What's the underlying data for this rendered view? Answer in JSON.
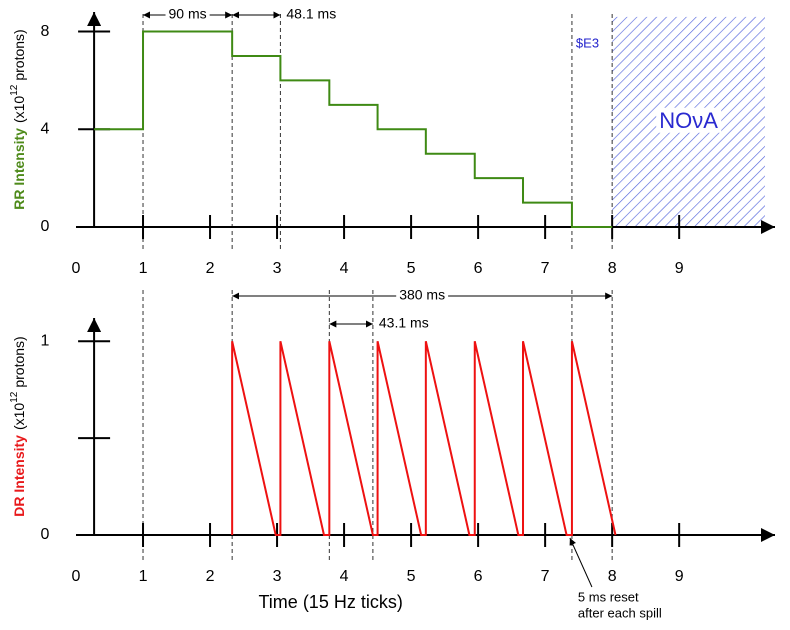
{
  "chart_data": [
    {
      "type": "line",
      "y_label": {
        "name": "RR Intensity",
        "unit": "(x10",
        "exponent": "12",
        "unit_end": "protons)",
        "name_color": "#4e8a1a"
      },
      "x": [
        0.27,
        1,
        1,
        2.33,
        2.33,
        3.05,
        3.05,
        3.78,
        3.78,
        4.5,
        4.5,
        5.22,
        5.22,
        5.95,
        5.95,
        6.67,
        6.67,
        7.4,
        7.4,
        8
      ],
      "series": [
        {
          "name": "RR Intensity",
          "color": "#3f8a14",
          "values": [
            4,
            4,
            8,
            8,
            7,
            7,
            6,
            6,
            5,
            5,
            4,
            4,
            3,
            3,
            2,
            2,
            1,
            1,
            0,
            0
          ]
        }
      ],
      "xlim": [
        0,
        10.43
      ],
      "ylim": [
        0,
        8.8
      ],
      "xticks": [
        0,
        1,
        2,
        3,
        4,
        5,
        6,
        7,
        8,
        9
      ],
      "yticks": [
        0,
        4,
        8
      ],
      "yaxis_at": 0.27,
      "vlines": [
        1,
        2.33,
        3.05,
        7.4,
        8
      ],
      "dimensions": [
        {
          "label": "90 ms",
          "x": [
            1,
            2.33
          ],
          "label_side": "center"
        },
        {
          "label": "48.1 ms",
          "x": [
            2.33,
            3.05
          ],
          "label_side": "right"
        }
      ],
      "vline_label": {
        "text": "$E3",
        "x": 7.4,
        "color": "#2222cc"
      },
      "shaded": {
        "label": "NOνA",
        "x": [
          8,
          10.28
        ],
        "y": [
          0,
          8.6
        ],
        "color": "#2a2ad0"
      }
    },
    {
      "type": "line",
      "y_label": {
        "name": "DR Intensity",
        "unit": "(x10",
        "exponent": "12",
        "unit_end": "protons)",
        "name_color": "#e8191b"
      },
      "x_label": "Time (15 Hz ticks)",
      "x": [
        2.33,
        2.33,
        2.98,
        3.05,
        3.05,
        3.7,
        3.78,
        3.78,
        4.43,
        4.5,
        4.5,
        5.15,
        5.22,
        5.22,
        5.87,
        5.95,
        5.95,
        6.6,
        6.67,
        6.67,
        7.32,
        7.4,
        7.4,
        8.05
      ],
      "series": [
        {
          "name": "DR Intensity",
          "color": "#ee1111",
          "values": [
            0,
            1,
            0,
            0,
            1,
            0,
            0,
            1,
            0,
            0,
            1,
            0,
            0,
            1,
            0,
            0,
            1,
            0,
            0,
            1,
            0,
            0,
            1,
            0
          ]
        }
      ],
      "xlim": [
        0,
        10.43
      ],
      "ylim": [
        0,
        1.12
      ],
      "xticks": [
        0,
        1,
        2,
        3,
        4,
        5,
        6,
        7,
        8,
        9
      ],
      "yticks": [
        0,
        1
      ],
      "yminorticks": [
        0.5
      ],
      "yaxis_at": 0.27,
      "vlines": [
        1,
        2.33,
        3.78,
        4.43,
        7.4,
        8
      ],
      "dimensions": [
        {
          "label": "380 ms",
          "x": [
            2.33,
            8
          ],
          "label_side": "center"
        },
        {
          "label": "43.1 ms",
          "x": [
            3.78,
            4.43
          ],
          "label_side": "right"
        }
      ],
      "callout": {
        "lines": [
          "5 ms reset",
          "after each spill"
        ],
        "x": 7.37,
        "y": 0
      }
    }
  ]
}
